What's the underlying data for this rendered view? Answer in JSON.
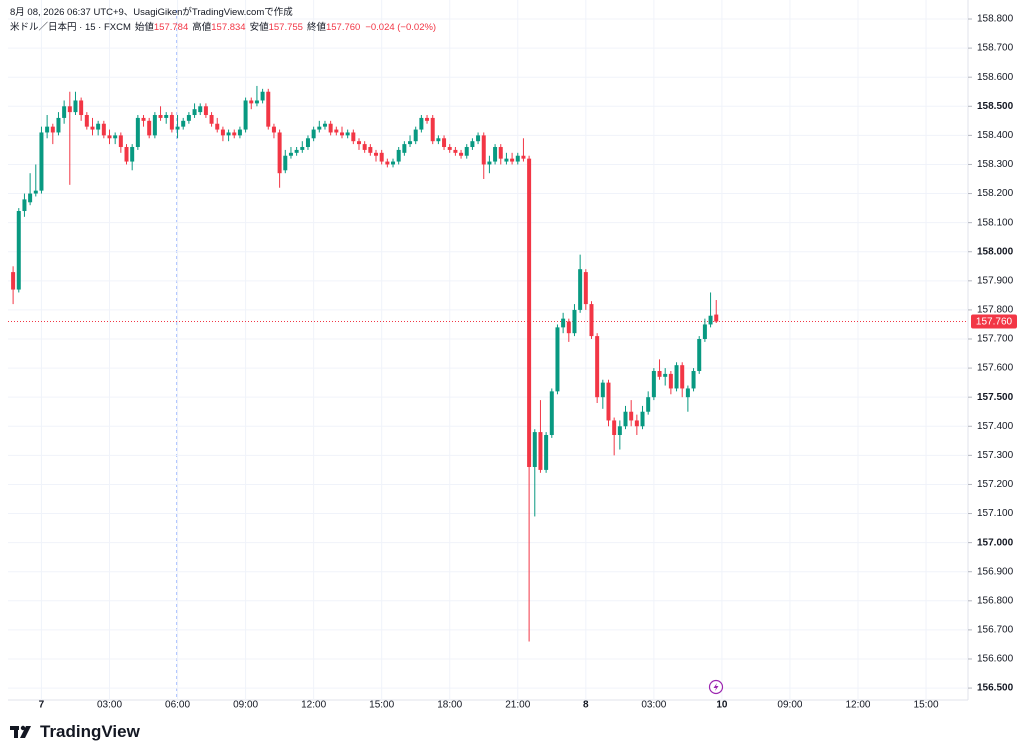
{
  "chart_data": {
    "type": "candlestick",
    "subtitle": "8月 08, 2026 06:37 UTC+9、UsagiGikenがTradingView.comで作成",
    "title": "米ドル／日本円 · 15 · FXCM",
    "ohlc_legend": [
      {
        "label": "始値",
        "value": "157.784"
      },
      {
        "label": "高値",
        "value": "157.834"
      },
      {
        "label": "安値",
        "value": "157.755"
      },
      {
        "label": "終値",
        "value": "157.760"
      }
    ],
    "change": "−0.024 (−0.02%)",
    "brand": "TradingView",
    "up_color": "#089981",
    "down_color": "#f23645",
    "grid": true,
    "last_price": {
      "value": 157.76,
      "label": "157.760"
    },
    "ylim": [
      156.459,
      158.831
    ],
    "yticks": [
      {
        "value": 156.5,
        "label": "156.500"
      },
      {
        "value": 156.6,
        "label": "156.600"
      },
      {
        "value": 156.7,
        "label": "156.700"
      },
      {
        "value": 156.8,
        "label": "156.800"
      },
      {
        "value": 156.9,
        "label": "156.900"
      },
      {
        "value": 157.0,
        "label": "157.000"
      },
      {
        "value": 157.1,
        "label": "157.100"
      },
      {
        "value": 157.2,
        "label": "157.200"
      },
      {
        "value": 157.3,
        "label": "157.300"
      },
      {
        "value": 157.4,
        "label": "157.400"
      },
      {
        "value": 157.5,
        "label": "157.500"
      },
      {
        "value": 157.6,
        "label": "157.600"
      },
      {
        "value": 157.7,
        "label": "157.700"
      },
      {
        "value": 157.8,
        "label": "157.800"
      },
      {
        "value": 157.9,
        "label": "157.900"
      },
      {
        "value": 158.0,
        "label": "158.000"
      },
      {
        "value": 158.1,
        "label": "158.100"
      },
      {
        "value": 158.2,
        "label": "158.200"
      },
      {
        "value": 158.3,
        "label": "158.300"
      },
      {
        "value": 158.4,
        "label": "158.400"
      },
      {
        "value": 158.5,
        "label": "158.500"
      },
      {
        "value": 158.6,
        "label": "158.600"
      },
      {
        "value": 158.7,
        "label": "158.700"
      },
      {
        "value": 158.8,
        "label": "158.800"
      }
    ],
    "xlim": [
      -0.9,
      168.4
    ],
    "xticks": [
      {
        "value": 5,
        "label": "7"
      },
      {
        "value": 17,
        "label": "03:00"
      },
      {
        "value": 29,
        "label": "06:00"
      },
      {
        "value": 41,
        "label": "09:00"
      },
      {
        "value": 53,
        "label": "12:00"
      },
      {
        "value": 65,
        "label": "15:00"
      },
      {
        "value": 77,
        "label": "18:00"
      },
      {
        "value": 89,
        "label": "21:00"
      },
      {
        "value": 101,
        "label": "8"
      },
      {
        "value": 113,
        "label": "03:00"
      },
      {
        "value": 125,
        "label": "10"
      },
      {
        "value": 137,
        "label": "09:00"
      },
      {
        "value": 149,
        "label": "12:00"
      },
      {
        "value": 161,
        "label": "15:00"
      }
    ],
    "open": [
      157.93,
      157.87,
      158.14,
      158.17,
      158.2,
      158.21,
      158.41,
      158.43,
      158.41,
      158.46,
      158.5,
      158.48,
      158.52,
      158.47,
      158.43,
      158.42,
      158.44,
      158.4,
      158.39,
      158.4,
      158.36,
      158.31,
      158.36,
      158.46,
      158.45,
      158.4,
      158.47,
      158.46,
      158.47,
      158.42,
      158.43,
      158.45,
      158.47,
      158.48,
      158.5,
      158.47,
      158.44,
      158.42,
      158.4,
      158.41,
      158.4,
      158.42,
      158.52,
      158.51,
      158.52,
      158.55,
      158.43,
      158.41,
      158.28,
      158.33,
      158.34,
      158.35,
      158.36,
      158.39,
      158.42,
      158.43,
      158.44,
      158.42,
      158.41,
      158.4,
      158.41,
      158.38,
      158.37,
      158.36,
      158.34,
      158.34,
      158.31,
      158.3,
      158.31,
      158.34,
      158.37,
      158.38,
      158.42,
      158.46,
      158.46,
      158.38,
      158.39,
      158.36,
      158.35,
      158.34,
      158.33,
      158.36,
      158.38,
      158.4,
      158.3,
      158.31,
      158.36,
      158.31,
      158.32,
      158.31,
      158.33,
      158.32,
      157.26,
      157.38,
      157.25,
      157.37,
      157.52,
      157.74,
      157.76,
      157.72,
      157.8,
      157.93,
      157.82,
      157.71,
      157.5,
      157.55,
      157.42,
      157.37,
      157.4,
      157.45,
      157.42,
      157.4,
      157.45,
      157.5,
      157.59,
      157.57,
      157.58,
      157.53,
      157.61,
      157.5,
      157.53,
      157.59,
      157.7,
      157.75,
      157.784
    ],
    "high": [
      157.95,
      158.15,
      158.2,
      158.27,
      158.3,
      158.43,
      158.47,
      158.44,
      158.48,
      158.52,
      158.55,
      158.55,
      158.53,
      158.48,
      158.46,
      158.45,
      158.45,
      158.42,
      158.41,
      158.41,
      158.37,
      158.37,
      158.47,
      158.47,
      158.46,
      158.48,
      158.5,
      158.48,
      158.48,
      158.47,
      158.46,
      158.48,
      158.51,
      158.51,
      158.51,
      158.48,
      158.46,
      158.43,
      158.42,
      158.42,
      158.43,
      158.53,
      158.53,
      158.57,
      158.56,
      158.56,
      158.44,
      158.42,
      158.35,
      158.36,
      158.36,
      158.38,
      158.4,
      158.43,
      158.45,
      158.45,
      158.45,
      158.43,
      158.43,
      158.42,
      158.42,
      158.39,
      158.38,
      158.37,
      158.35,
      158.35,
      158.32,
      158.32,
      158.36,
      158.38,
      158.4,
      158.43,
      158.47,
      158.47,
      158.47,
      158.4,
      158.4,
      158.37,
      158.36,
      158.35,
      158.37,
      158.39,
      158.41,
      158.41,
      158.33,
      158.37,
      158.37,
      158.34,
      158.34,
      158.34,
      158.39,
      158.33,
      157.39,
      157.49,
      157.38,
      157.53,
      157.75,
      157.79,
      157.77,
      157.82,
      157.99,
      157.94,
      157.83,
      157.72,
      157.56,
      157.56,
      157.43,
      157.42,
      157.47,
      157.49,
      157.44,
      157.47,
      157.52,
      157.6,
      157.63,
      157.6,
      157.59,
      157.62,
      157.62,
      157.54,
      157.6,
      157.71,
      157.77,
      157.86,
      157.834
    ],
    "low": [
      157.82,
      157.86,
      158.12,
      158.16,
      158.19,
      158.2,
      158.39,
      158.37,
      158.4,
      158.44,
      158.23,
      158.47,
      158.45,
      158.42,
      158.4,
      158.4,
      158.39,
      158.37,
      158.37,
      158.34,
      158.3,
      158.28,
      158.35,
      158.43,
      158.39,
      158.39,
      158.45,
      158.44,
      158.41,
      158.39,
      158.42,
      158.44,
      158.46,
      158.47,
      158.46,
      158.43,
      158.41,
      158.38,
      158.38,
      158.39,
      158.39,
      158.41,
      158.49,
      158.5,
      158.51,
      158.42,
      158.39,
      158.22,
      158.27,
      158.32,
      158.33,
      158.34,
      158.35,
      158.38,
      158.41,
      158.42,
      158.4,
      158.4,
      158.39,
      158.39,
      158.37,
      158.35,
      158.34,
      158.33,
      158.31,
      158.3,
      158.29,
      158.29,
      158.3,
      158.33,
      158.36,
      158.37,
      158.41,
      158.44,
      158.37,
      158.37,
      158.35,
      158.34,
      158.33,
      158.32,
      158.32,
      158.35,
      158.37,
      158.25,
      158.27,
      158.3,
      158.3,
      158.3,
      158.3,
      158.3,
      158.31,
      156.66,
      157.09,
      157.24,
      157.24,
      157.36,
      157.51,
      157.72,
      157.69,
      157.71,
      157.79,
      157.8,
      157.7,
      157.48,
      157.46,
      157.4,
      157.3,
      157.32,
      157.39,
      157.4,
      157.37,
      157.39,
      157.44,
      157.49,
      157.56,
      157.54,
      157.51,
      157.52,
      157.5,
      157.45,
      157.52,
      157.58,
      157.69,
      157.74,
      157.755
    ],
    "close": [
      157.87,
      158.14,
      158.18,
      158.2,
      158.21,
      158.41,
      158.43,
      158.41,
      158.46,
      158.5,
      158.48,
      158.52,
      158.47,
      158.43,
      158.42,
      158.44,
      158.4,
      158.39,
      158.4,
      158.36,
      158.31,
      158.36,
      158.46,
      158.45,
      158.4,
      158.47,
      158.46,
      158.47,
      158.42,
      158.43,
      158.45,
      158.47,
      158.49,
      158.5,
      158.47,
      158.44,
      158.42,
      158.4,
      158.41,
      158.4,
      158.42,
      158.52,
      158.51,
      158.52,
      158.55,
      158.43,
      158.41,
      158.27,
      158.33,
      158.34,
      158.35,
      158.36,
      158.39,
      158.42,
      158.43,
      158.44,
      158.41,
      158.41,
      158.4,
      158.41,
      158.38,
      158.37,
      158.35,
      158.34,
      158.33,
      158.31,
      158.3,
      158.31,
      158.35,
      158.37,
      158.38,
      158.42,
      158.46,
      158.45,
      158.38,
      158.39,
      158.36,
      158.35,
      158.34,
      158.33,
      158.36,
      158.38,
      158.4,
      158.3,
      158.31,
      158.36,
      158.32,
      158.32,
      158.31,
      158.33,
      158.32,
      157.26,
      157.38,
      157.25,
      157.37,
      157.52,
      157.74,
      157.77,
      157.72,
      157.8,
      157.94,
      157.82,
      157.71,
      157.5,
      157.55,
      157.42,
      157.37,
      157.4,
      157.45,
      157.42,
      157.4,
      157.45,
      157.5,
      157.59,
      157.57,
      157.58,
      157.53,
      157.61,
      157.53,
      157.53,
      157.59,
      157.7,
      157.75,
      157.78,
      157.76
    ]
  }
}
